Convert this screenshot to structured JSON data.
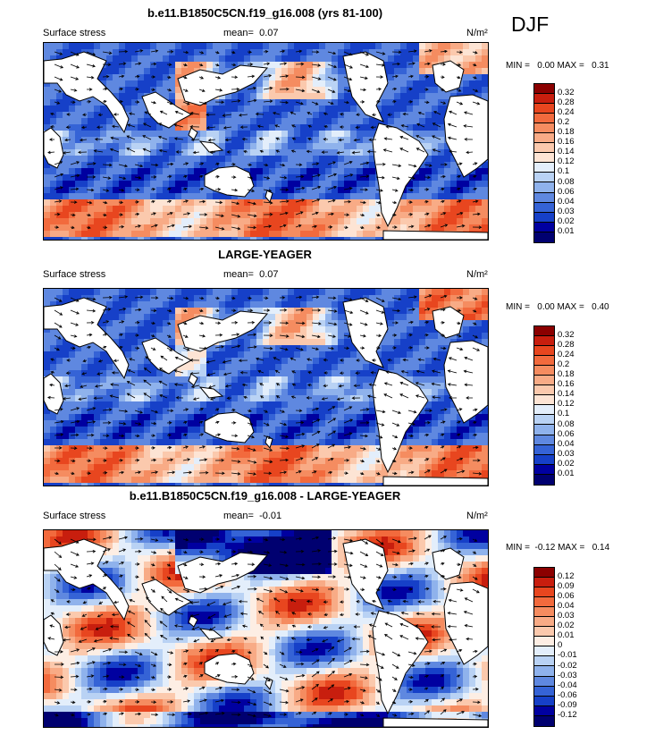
{
  "season": "DJF",
  "panels": [
    {
      "title": "b.e11.B1850C5CN.f19_g16.008 (yrs 81-100)",
      "variable": "Surface stress",
      "mean_label": "mean=",
      "mean_value": "0.07",
      "units": "N/m²",
      "minmax": "MIN =   0.00 MAX =   0.31",
      "colorbar_labels": [
        "0.32",
        "0.28",
        "0.24",
        "0.2",
        "0.18",
        "0.16",
        "0.14",
        "0.12",
        "0.1",
        "0.08",
        "0.06",
        "0.04",
        "0.03",
        "0.02",
        "0.01"
      ],
      "colors": [
        "#8b0000",
        "#c81e0e",
        "#e8461f",
        "#f26a3d",
        "#f58c60",
        "#f8ab86",
        "#fbc9ad",
        "#fde4d4",
        "#e3eefb",
        "#b9d2f4",
        "#8fb2ec",
        "#5f88e0",
        "#3563d6",
        "#1640c8",
        "#0000a0",
        "#000070"
      ]
    },
    {
      "title": "LARGE-YEAGER",
      "variable": "Surface stress",
      "mean_label": "mean=",
      "mean_value": "0.07",
      "units": "N/m²",
      "minmax": "MIN =   0.00 MAX =   0.40",
      "colorbar_labels": [
        "0.32",
        "0.28",
        "0.24",
        "0.2",
        "0.18",
        "0.16",
        "0.14",
        "0.12",
        "0.1",
        "0.08",
        "0.06",
        "0.04",
        "0.03",
        "0.02",
        "0.01"
      ],
      "colors": [
        "#8b0000",
        "#c81e0e",
        "#e8461f",
        "#f26a3d",
        "#f58c60",
        "#f8ab86",
        "#fbc9ad",
        "#fde4d4",
        "#e3eefb",
        "#b9d2f4",
        "#8fb2ec",
        "#5f88e0",
        "#3563d6",
        "#1640c8",
        "#0000a0",
        "#000070"
      ]
    },
    {
      "title": "b.e11.B1850C5CN.f19_g16.008 - LARGE-YEAGER",
      "variable": "Surface stress",
      "mean_label": "mean=",
      "mean_value": "-0.01",
      "units": "N/m²",
      "minmax": "MIN =  -0.12 MAX =   0.14",
      "colorbar_labels": [
        "0.12",
        "0.09",
        "0.06",
        "0.04",
        "0.03",
        "0.02",
        "0.01",
        "0",
        "-0.01",
        "-0.02",
        "-0.03",
        "-0.04",
        "-0.06",
        "-0.09",
        "-0.12"
      ],
      "colors": [
        "#8b0000",
        "#c81e0e",
        "#e8461f",
        "#f26a3d",
        "#f58c60",
        "#f8ab86",
        "#fbc9ad",
        "#fdeee4",
        "#e3eefb",
        "#b9d2f4",
        "#8fb2ec",
        "#5f88e0",
        "#3563d6",
        "#1640c8",
        "#0000a0",
        "#000070"
      ]
    }
  ]
}
